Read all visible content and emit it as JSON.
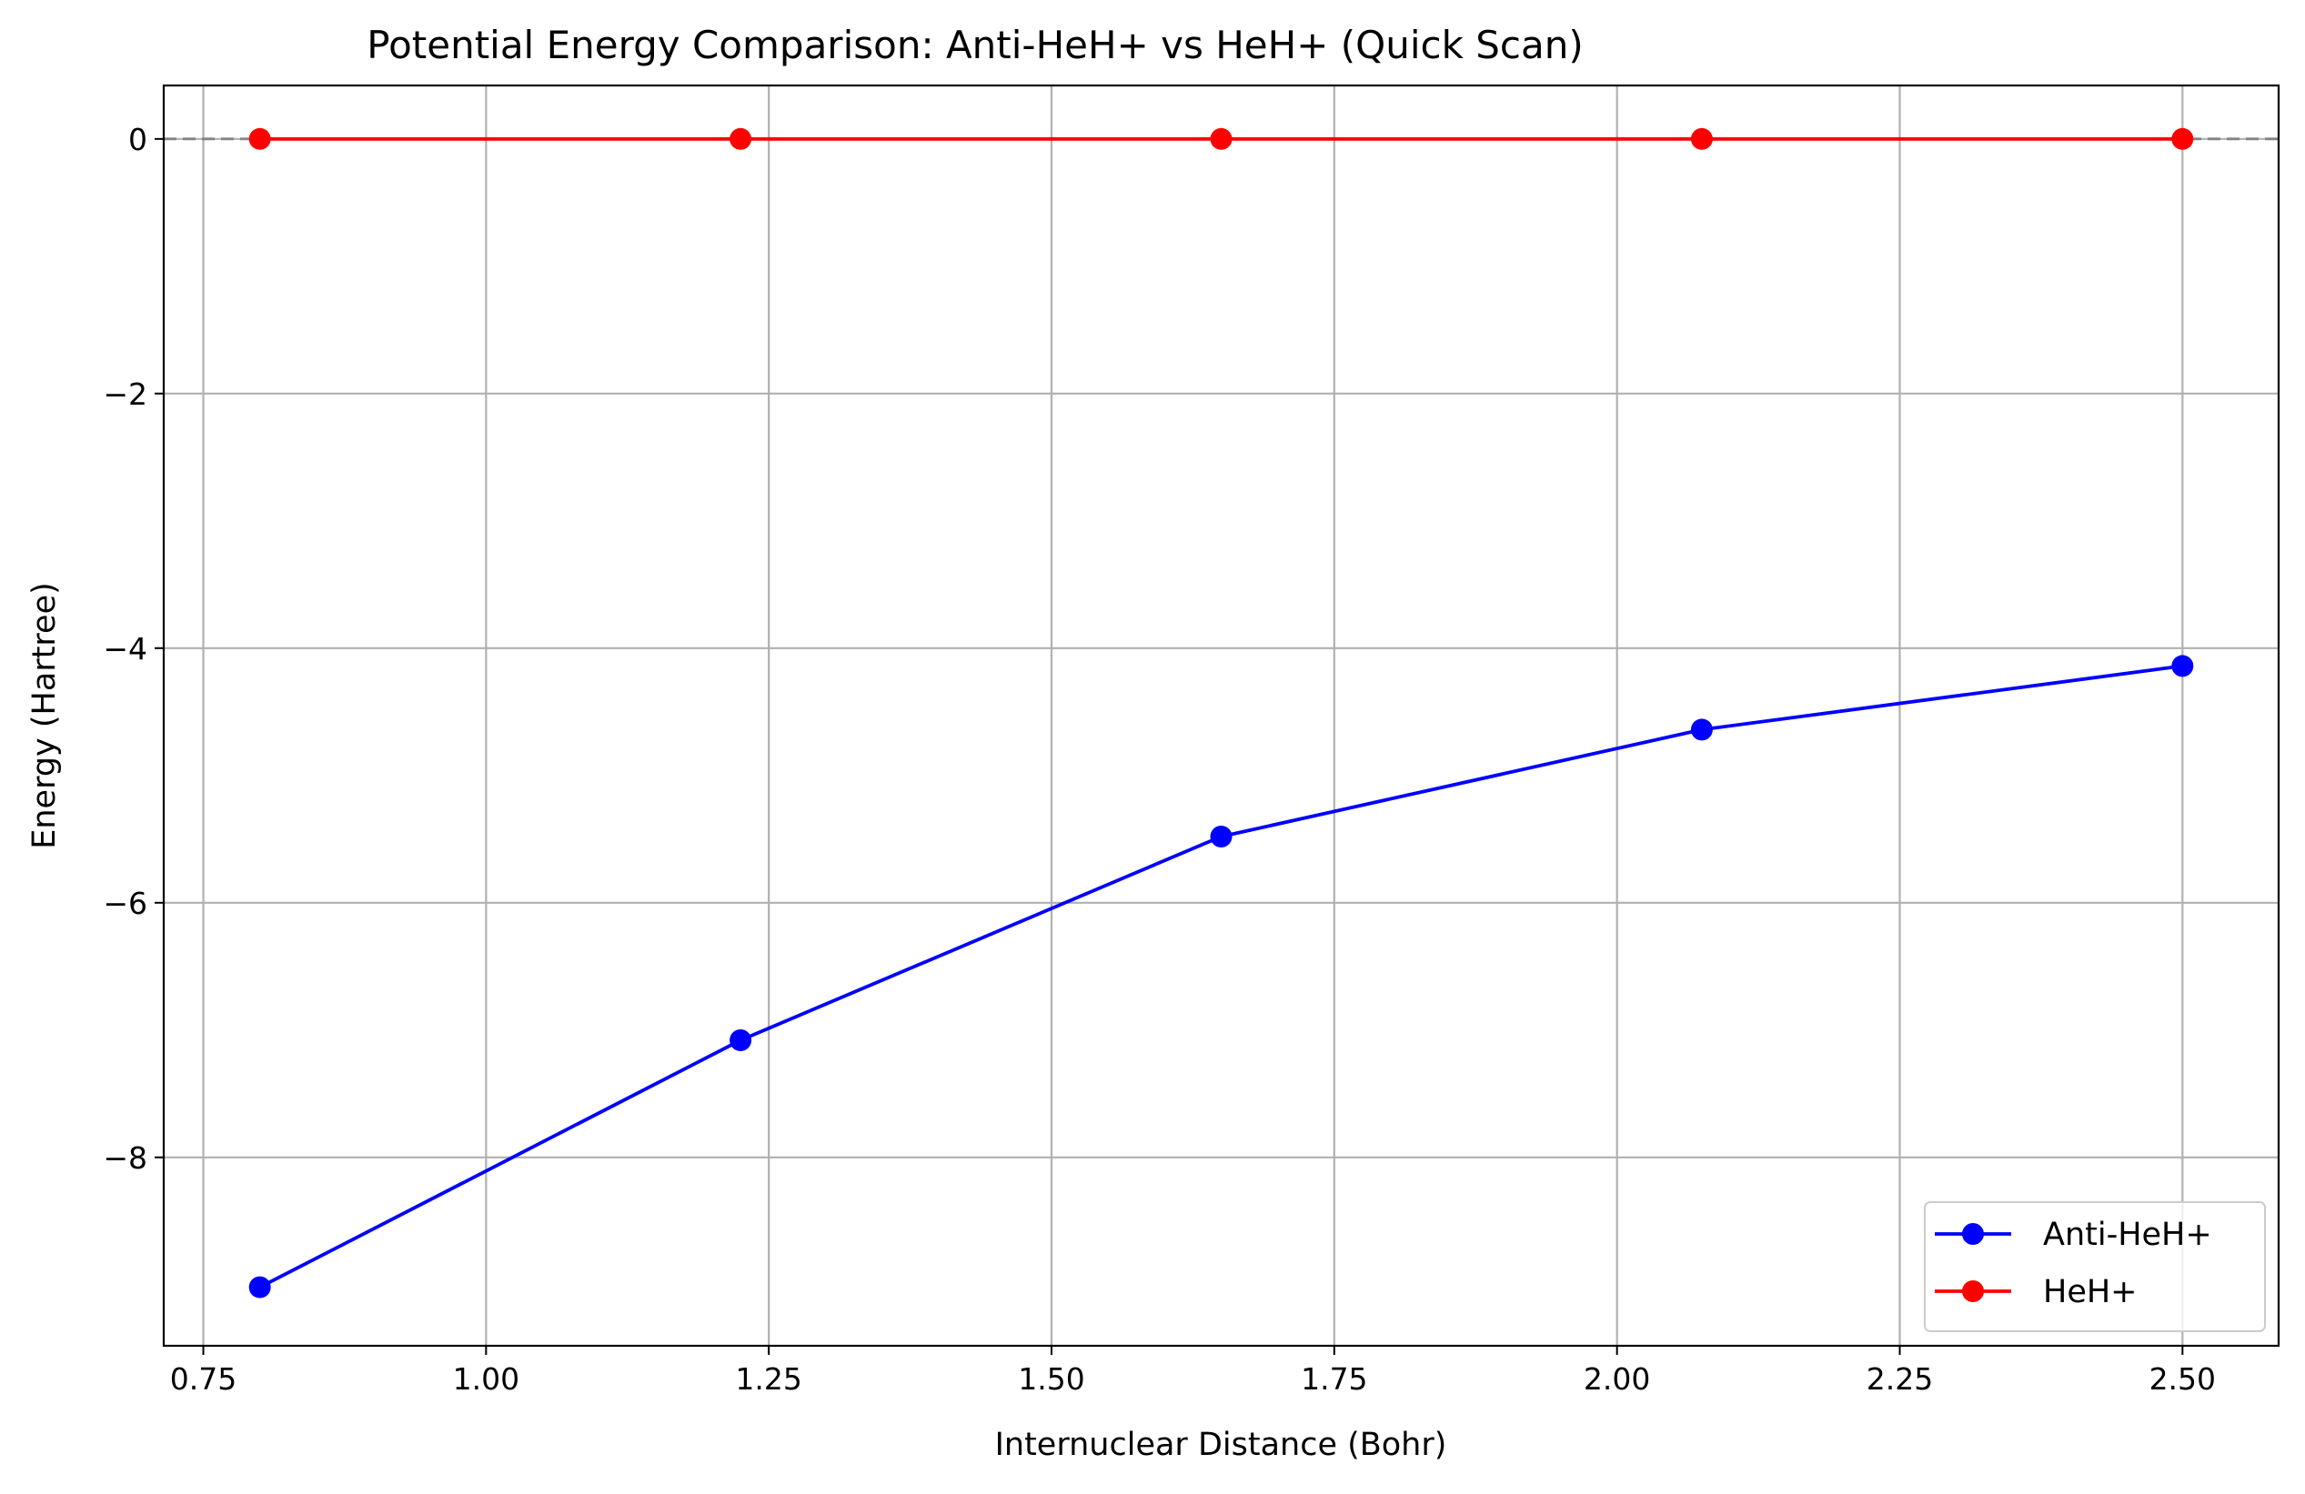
{
  "chart_data": {
    "type": "line",
    "title": "Potential Energy Comparison: Anti-HeH+ vs HeH+ (Quick Scan)",
    "xlabel": "Internuclear Distance (Bohr)",
    "ylabel": "Energy (Hartree)",
    "xlim": [
      0.715,
      2.585
    ],
    "ylim": [
      -9.48,
      0.42
    ],
    "xticks": [
      0.75,
      1.0,
      1.25,
      1.5,
      1.75,
      2.0,
      2.25,
      2.5
    ],
    "xtick_labels": [
      "0.75",
      "1.00",
      "1.25",
      "1.50",
      "1.75",
      "2.00",
      "2.25",
      "2.50"
    ],
    "yticks": [
      0,
      -2,
      -4,
      -6,
      -8
    ],
    "ytick_labels": [
      "0",
      "−2",
      "−4",
      "−6",
      "−8"
    ],
    "grid": true,
    "reference_line": {
      "y": 0,
      "style": "dashed",
      "color": "#808080"
    },
    "legend_position": "lower-right",
    "x": [
      0.8,
      1.225,
      1.65,
      2.075,
      2.5
    ],
    "series": [
      {
        "name": "Anti-HeH+",
        "color": "#0000ff",
        "marker": "circle",
        "values": [
          -9.02,
          -7.08,
          -5.48,
          -4.64,
          -4.14
        ]
      },
      {
        "name": "HeH+",
        "color": "#ff0000",
        "marker": "circle",
        "values": [
          0.0,
          0.0,
          0.0,
          0.0,
          0.0
        ]
      }
    ]
  }
}
